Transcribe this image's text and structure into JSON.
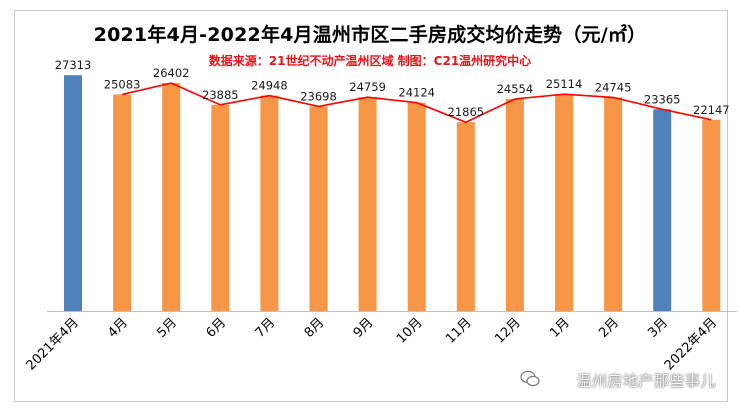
{
  "title": "2021年4月-2022年4月温州市区二手房成交均价走势（元/㎡）",
  "subtitle": "数据来源：21世纪不动产温州区域  制图：C21温州研究中心",
  "watermark": "温州房地产那些事儿",
  "colors": {
    "bar_orange": "#f79646",
    "bar_blue": "#4f81bd",
    "line": "#ff0000"
  },
  "chart_data": {
    "type": "bar",
    "categories": [
      "2021年4月",
      "4月",
      "5月",
      "6月",
      "7月",
      "8月",
      "9月",
      "10月",
      "11月",
      "12月",
      "1月",
      "2月",
      "3月",
      "2022年4月"
    ],
    "values": [
      27313,
      25083,
      26402,
      23885,
      24948,
      23698,
      24759,
      24124,
      21865,
      24554,
      25114,
      24745,
      23365,
      22147
    ],
    "bar_colors": [
      "#4f81bd",
      "#f79646",
      "#f79646",
      "#f79646",
      "#f79646",
      "#f79646",
      "#f79646",
      "#f79646",
      "#f79646",
      "#f79646",
      "#f79646",
      "#f79646",
      "#4f81bd",
      "#f79646"
    ],
    "trend_line_start_index": 1,
    "ylim": [
      0,
      30000
    ],
    "grid": false,
    "legend": "none"
  }
}
